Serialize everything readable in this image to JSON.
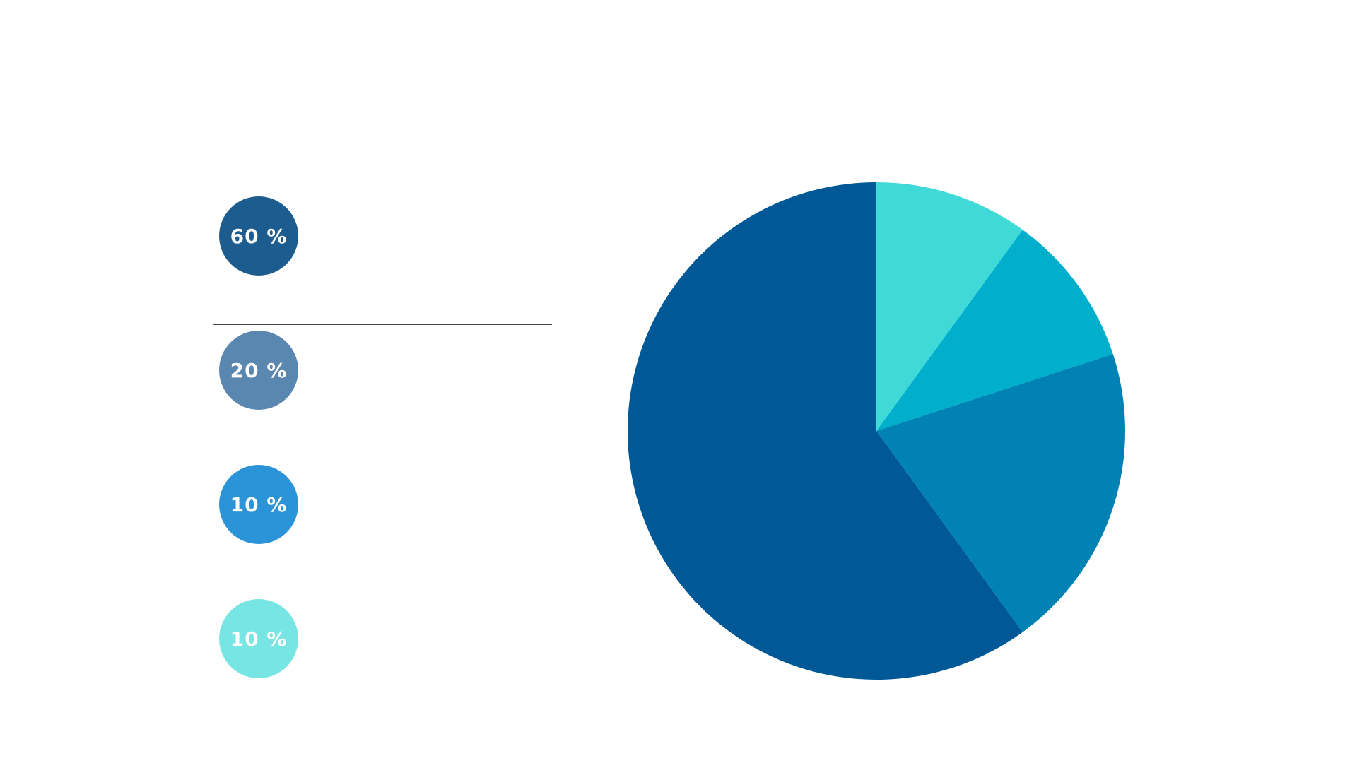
{
  "chart_data": {
    "type": "pie",
    "start_angle_deg": 0,
    "direction": "clockwise",
    "slices": [
      {
        "label": "10 %",
        "value": 10,
        "color": "#3FDAD8"
      },
      {
        "label": "10 %",
        "value": 10,
        "color": "#00AFCB"
      },
      {
        "label": "20 %",
        "value": 20,
        "color": "#0082B4"
      },
      {
        "label": "60 %",
        "value": 60,
        "color": "#005897"
      }
    ]
  },
  "legend": {
    "items": [
      {
        "label": "60 %",
        "color": "#1D5C8E"
      },
      {
        "label": "20 %",
        "color": "#5A87AF"
      },
      {
        "label": "10 %",
        "color": "#2B93D8"
      },
      {
        "label": "10 %",
        "color": "#76E5E3"
      }
    ]
  }
}
